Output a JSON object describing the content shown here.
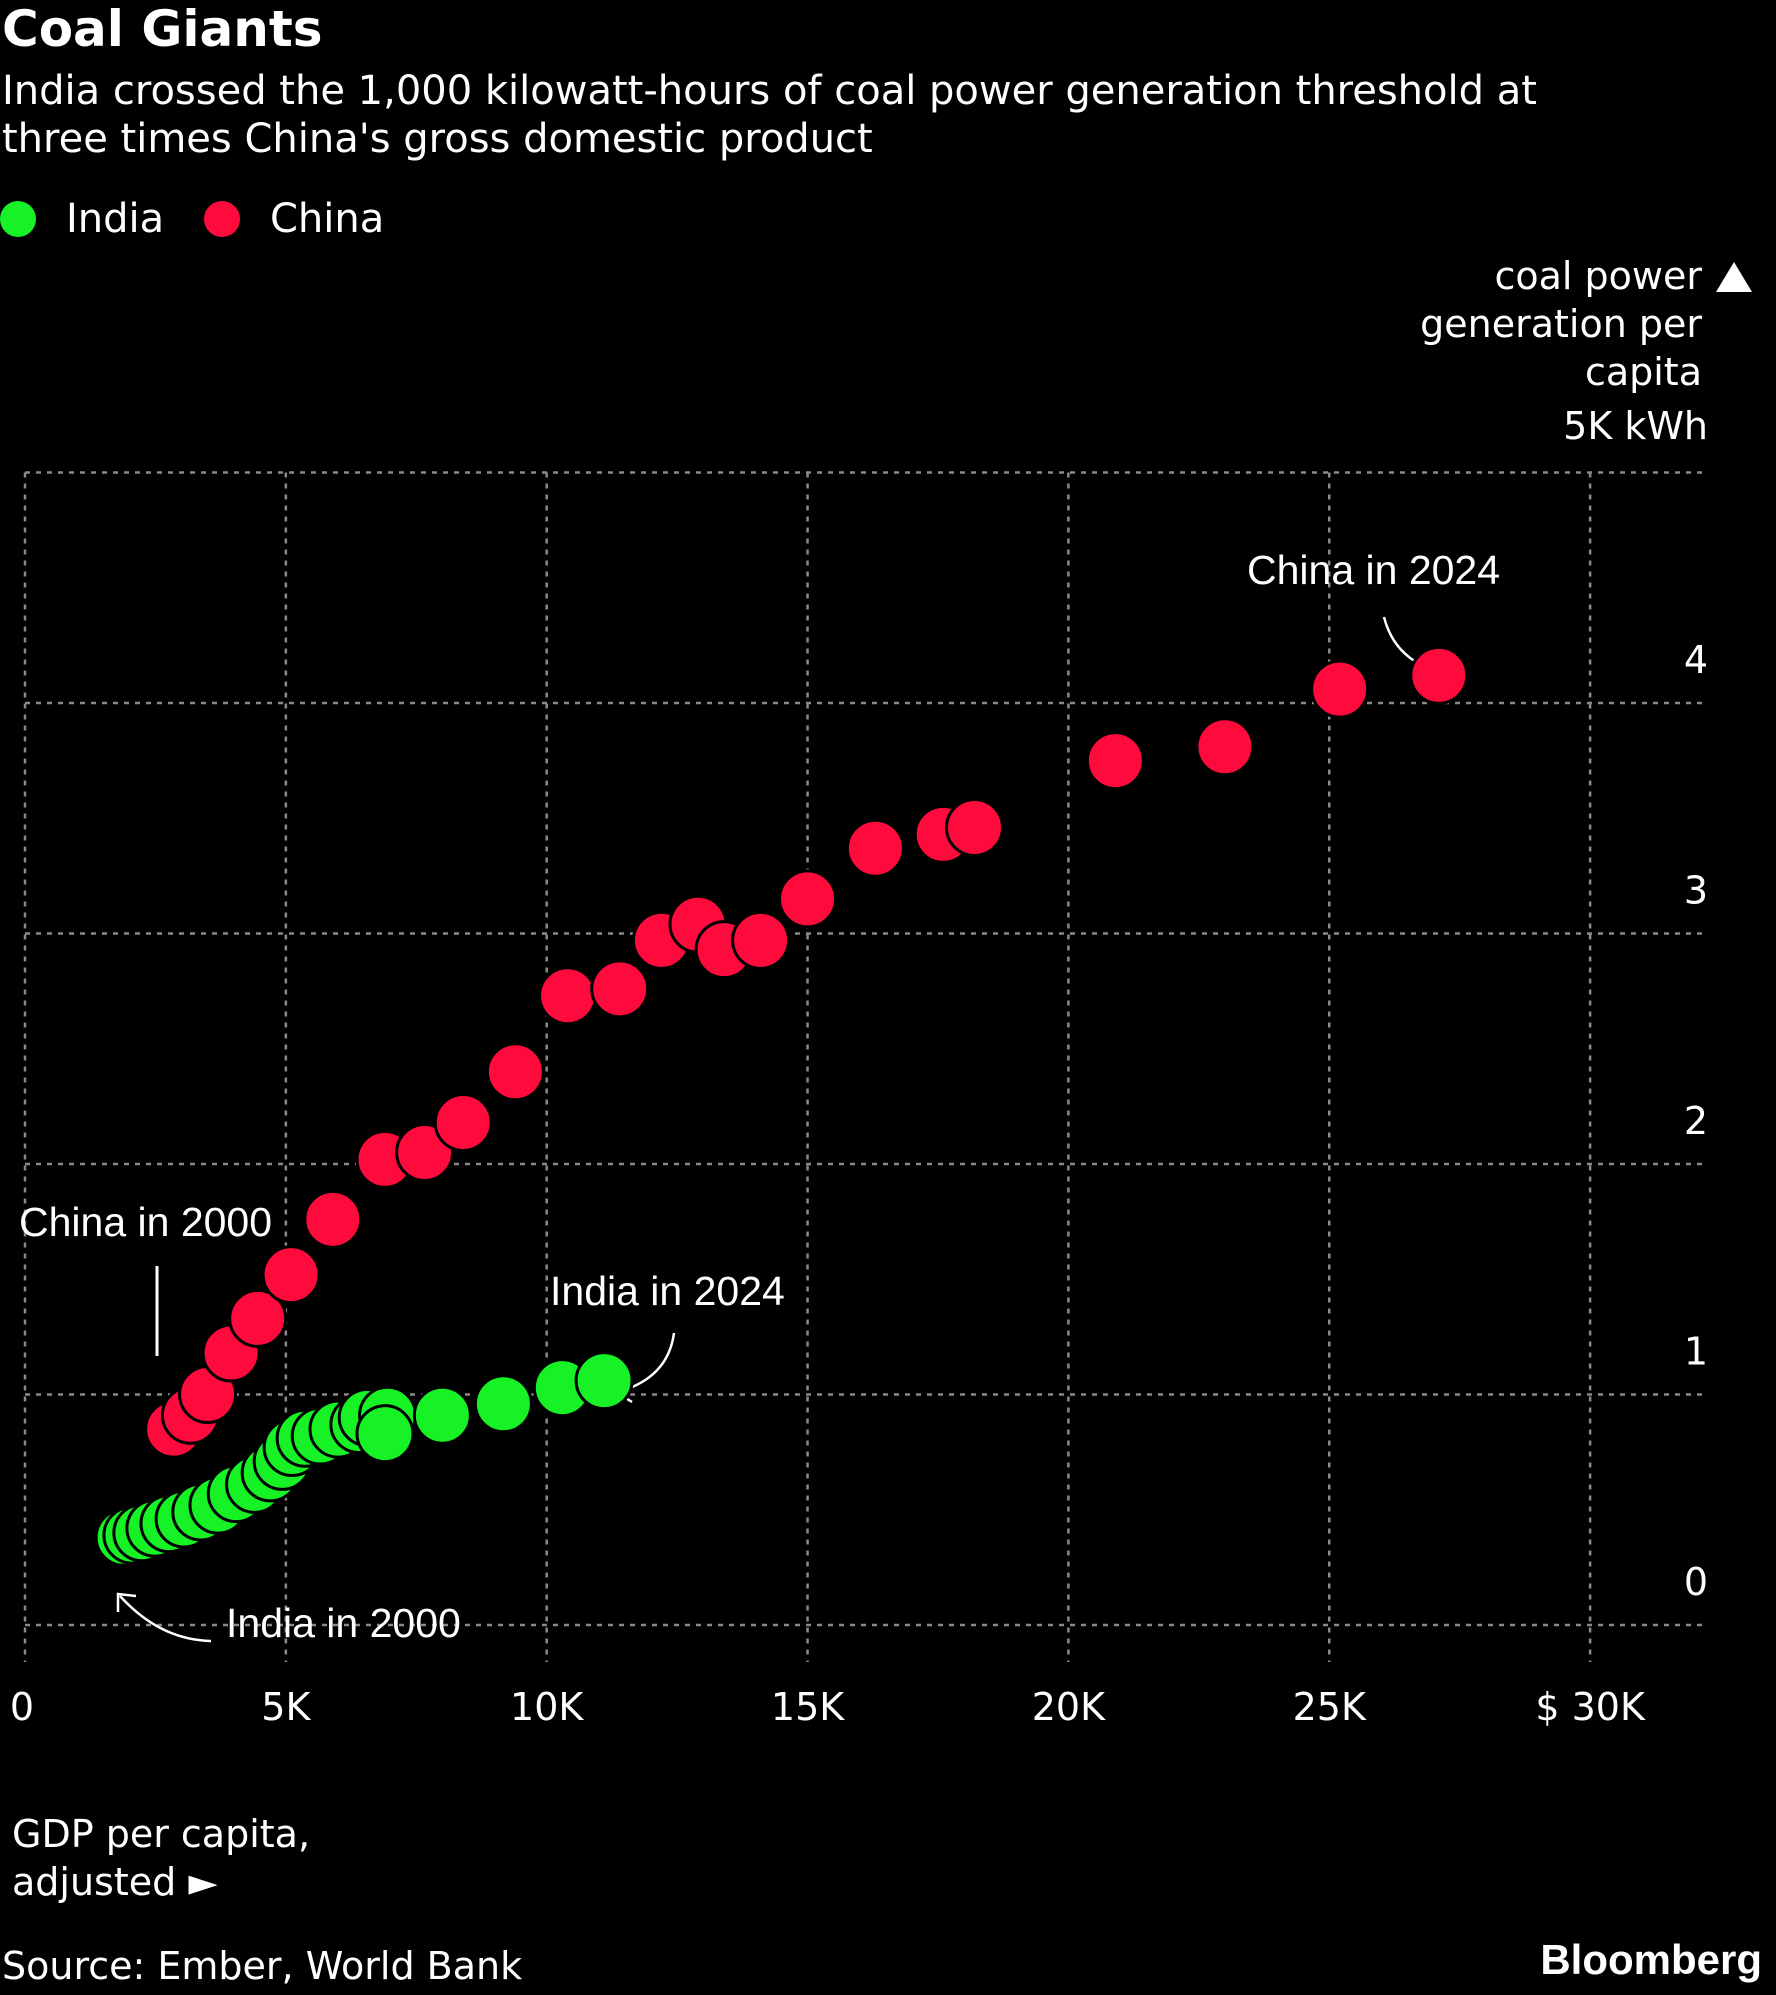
{
  "header": {
    "title": "Coal Giants",
    "subtitle_line1": "India crossed the 1,000 kilowatt-hours of coal power generation threshold at",
    "subtitle_line2": "three times China's gross domestic product"
  },
  "footer": {
    "source": "Source: Ember, World Bank",
    "brand": "Bloomberg"
  },
  "chart_data": {
    "type": "scatter",
    "title": "Coal Giants",
    "ylabel_lines": [
      "coal power",
      "generation per",
      "capita",
      "5K kWh"
    ],
    "xlabel_lines": [
      "GDP per capita,",
      "adjusted ►"
    ],
    "xlim": [
      0,
      32000
    ],
    "ylim": [
      0,
      5000
    ],
    "x_ticks": [
      0,
      5000,
      10000,
      15000,
      20000,
      25000,
      30000
    ],
    "x_tick_labels": [
      "0",
      "5K",
      "10K",
      "15K",
      "20K",
      "25K",
      "$ 30K"
    ],
    "y_ticks": [
      0,
      1000,
      2000,
      3000,
      4000
    ],
    "y_tick_labels": [
      "0",
      "1",
      "2",
      "3",
      "4"
    ],
    "grid": true,
    "legend_position": "top-left",
    "series": [
      {
        "name": "India",
        "color": "#16f226",
        "x": [
          1900,
          2050,
          2240,
          2490,
          2760,
          3050,
          3370,
          3700,
          4050,
          4400,
          4700,
          4930,
          5120,
          5370,
          5660,
          6000,
          6400,
          6560,
          6950,
          6900,
          8000,
          9170,
          10300,
          11100
        ],
        "y": [
          380,
          390,
          400,
          420,
          440,
          460,
          490,
          520,
          570,
          610,
          660,
          710,
          770,
          810,
          820,
          850,
          870,
          900,
          910,
          830,
          910,
          960,
          1030,
          1060
        ]
      },
      {
        "name": "China",
        "color": "#ff0a3c",
        "x": [
          2850,
          3170,
          3500,
          3950,
          4460,
          5100,
          5900,
          6900,
          7660,
          8400,
          9400,
          10400,
          11400,
          12200,
          12900,
          13400,
          14100,
          15000,
          16300,
          17600,
          18200,
          20900,
          23000,
          25200,
          27100
        ],
        "y": [
          850,
          910,
          1000,
          1180,
          1330,
          1520,
          1760,
          2020,
          2050,
          2180,
          2400,
          2730,
          2760,
          2970,
          3040,
          2930,
          2970,
          3150,
          3370,
          3430,
          3460,
          3750,
          3810,
          4060,
          4120
        ]
      }
    ],
    "annotations": [
      {
        "text": "China in 2024"
      },
      {
        "text": "China in 2000"
      },
      {
        "text": "India in 2024"
      },
      {
        "text": "India in 2000"
      }
    ]
  }
}
